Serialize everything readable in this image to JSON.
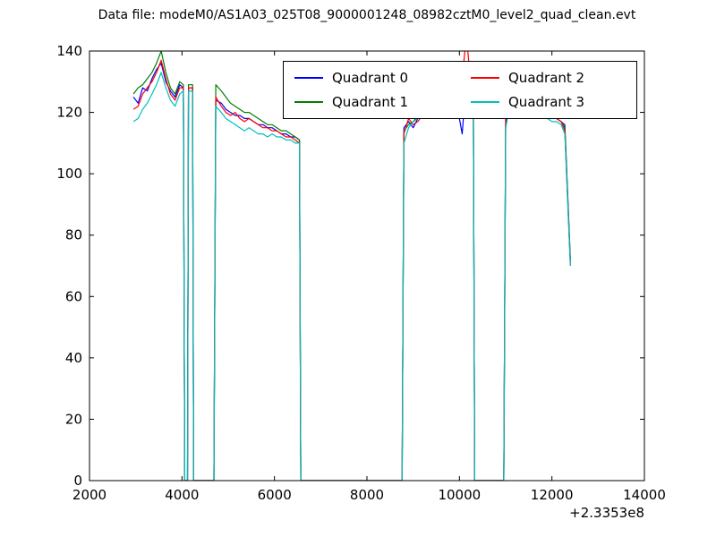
{
  "chart_data": {
    "type": "line",
    "title": "Data file: modeM0/AS1A03_025T08_9000001248_08982cztM0_level2_quad_clean.evt",
    "xlabel": "",
    "ylabel": "",
    "xlim": [
      2000,
      14000
    ],
    "ylim": [
      0,
      140
    ],
    "xticks": [
      2000,
      4000,
      6000,
      8000,
      10000,
      12000,
      14000
    ],
    "yticks": [
      0,
      20,
      40,
      60,
      80,
      100,
      120,
      140
    ],
    "x_offset_label": "+2.3353e8",
    "grid": false,
    "legend": {
      "position": "upper center",
      "columns": 2
    },
    "series": [
      {
        "name": "Quadrant 0",
        "color": "#0000ff",
        "points": [
          [
            2950,
            125
          ],
          [
            3050,
            123
          ],
          [
            3150,
            128
          ],
          [
            3250,
            127
          ],
          [
            3350,
            131
          ],
          [
            3450,
            134
          ],
          [
            3550,
            136
          ],
          [
            3650,
            130
          ],
          [
            3750,
            127
          ],
          [
            3850,
            125
          ],
          [
            3950,
            129
          ],
          [
            4030,
            128
          ],
          [
            4060,
            0
          ],
          [
            4120,
            0
          ],
          [
            4140,
            128
          ],
          [
            4230,
            128
          ],
          [
            4250,
            0
          ],
          [
            4690,
            0
          ],
          [
            4730,
            124
          ],
          [
            4850,
            123
          ],
          [
            4950,
            121
          ],
          [
            5050,
            120
          ],
          [
            5150,
            119
          ],
          [
            5250,
            119
          ],
          [
            5350,
            118
          ],
          [
            5450,
            118
          ],
          [
            5550,
            117
          ],
          [
            5650,
            116
          ],
          [
            5750,
            116
          ],
          [
            5850,
            115
          ],
          [
            5950,
            115
          ],
          [
            6050,
            114
          ],
          [
            6150,
            113
          ],
          [
            6250,
            113
          ],
          [
            6350,
            112
          ],
          [
            6450,
            112
          ],
          [
            6540,
            111
          ],
          [
            6570,
            0
          ],
          [
            8760,
            0
          ],
          [
            8800,
            115
          ],
          [
            8900,
            117
          ],
          [
            9000,
            115
          ],
          [
            9100,
            118
          ],
          [
            9200,
            119
          ],
          [
            9300,
            120
          ],
          [
            9400,
            121
          ],
          [
            9500,
            123
          ],
          [
            9600,
            125
          ],
          [
            9700,
            127
          ],
          [
            9800,
            128
          ],
          [
            9900,
            124
          ],
          [
            10000,
            118
          ],
          [
            10060,
            113
          ],
          [
            10150,
            131
          ],
          [
            10230,
            129
          ],
          [
            10300,
            128
          ],
          [
            10330,
            0
          ],
          [
            10960,
            0
          ],
          [
            11000,
            116
          ],
          [
            11080,
            127
          ],
          [
            11200,
            128
          ],
          [
            11300,
            126
          ],
          [
            11400,
            124
          ],
          [
            11500,
            123
          ],
          [
            11600,
            122
          ],
          [
            11700,
            121
          ],
          [
            11800,
            120
          ],
          [
            11900,
            119
          ],
          [
            12000,
            118
          ],
          [
            12100,
            118
          ],
          [
            12200,
            117
          ],
          [
            12280,
            116
          ],
          [
            12400,
            72
          ]
        ]
      },
      {
        "name": "Quadrant 1",
        "color": "#008000",
        "points": [
          [
            2950,
            126
          ],
          [
            3050,
            128
          ],
          [
            3150,
            129
          ],
          [
            3250,
            131
          ],
          [
            3350,
            133
          ],
          [
            3450,
            136
          ],
          [
            3550,
            140
          ],
          [
            3650,
            133
          ],
          [
            3750,
            128
          ],
          [
            3850,
            126
          ],
          [
            3950,
            130
          ],
          [
            4030,
            129
          ],
          [
            4060,
            0
          ],
          [
            4120,
            0
          ],
          [
            4140,
            129
          ],
          [
            4230,
            129
          ],
          [
            4250,
            0
          ],
          [
            4690,
            0
          ],
          [
            4730,
            129
          ],
          [
            4850,
            127
          ],
          [
            4950,
            125
          ],
          [
            5050,
            123
          ],
          [
            5150,
            122
          ],
          [
            5250,
            121
          ],
          [
            5350,
            120
          ],
          [
            5450,
            120
          ],
          [
            5550,
            119
          ],
          [
            5650,
            118
          ],
          [
            5750,
            117
          ],
          [
            5850,
            116
          ],
          [
            5950,
            116
          ],
          [
            6050,
            115
          ],
          [
            6150,
            114
          ],
          [
            6250,
            114
          ],
          [
            6350,
            113
          ],
          [
            6450,
            112
          ],
          [
            6540,
            111
          ],
          [
            6570,
            0
          ],
          [
            8760,
            0
          ],
          [
            8800,
            114
          ],
          [
            8900,
            116
          ],
          [
            9000,
            117
          ],
          [
            9100,
            119
          ],
          [
            9200,
            120
          ],
          [
            9300,
            122
          ],
          [
            9400,
            124
          ],
          [
            9500,
            127
          ],
          [
            9600,
            130
          ],
          [
            9700,
            133
          ],
          [
            9800,
            135
          ],
          [
            9900,
            130
          ],
          [
            10000,
            127
          ],
          [
            10060,
            129
          ],
          [
            10150,
            134
          ],
          [
            10230,
            131
          ],
          [
            10300,
            129
          ],
          [
            10330,
            0
          ],
          [
            10960,
            0
          ],
          [
            11000,
            118
          ],
          [
            11080,
            131
          ],
          [
            11200,
            129
          ],
          [
            11300,
            127
          ],
          [
            11400,
            125
          ],
          [
            11500,
            123
          ],
          [
            11600,
            122
          ],
          [
            11700,
            121
          ],
          [
            11800,
            120
          ],
          [
            11900,
            119
          ],
          [
            12000,
            119
          ],
          [
            12100,
            118
          ],
          [
            12200,
            117
          ],
          [
            12280,
            115
          ],
          [
            12400,
            71
          ]
        ]
      },
      {
        "name": "Quadrant 2",
        "color": "#ff0000",
        "points": [
          [
            2950,
            121
          ],
          [
            3050,
            122
          ],
          [
            3150,
            126
          ],
          [
            3250,
            128
          ],
          [
            3350,
            130
          ],
          [
            3450,
            133
          ],
          [
            3550,
            137
          ],
          [
            3650,
            131
          ],
          [
            3750,
            126
          ],
          [
            3850,
            124
          ],
          [
            3950,
            128
          ],
          [
            4030,
            128
          ],
          [
            4060,
            0
          ],
          [
            4120,
            0
          ],
          [
            4140,
            128
          ],
          [
            4230,
            128
          ],
          [
            4250,
            0
          ],
          [
            4690,
            0
          ],
          [
            4730,
            125
          ],
          [
            4850,
            122
          ],
          [
            4950,
            120
          ],
          [
            5050,
            119
          ],
          [
            5150,
            120
          ],
          [
            5250,
            118
          ],
          [
            5350,
            117
          ],
          [
            5450,
            118
          ],
          [
            5550,
            117
          ],
          [
            5650,
            116
          ],
          [
            5750,
            115
          ],
          [
            5850,
            115
          ],
          [
            5950,
            114
          ],
          [
            6050,
            114
          ],
          [
            6150,
            113
          ],
          [
            6250,
            112
          ],
          [
            6350,
            112
          ],
          [
            6450,
            111
          ],
          [
            6540,
            110
          ],
          [
            6570,
            0
          ],
          [
            8760,
            0
          ],
          [
            8800,
            113
          ],
          [
            8900,
            118
          ],
          [
            9000,
            116
          ],
          [
            9100,
            117
          ],
          [
            9200,
            119
          ],
          [
            9300,
            121
          ],
          [
            9400,
            123
          ],
          [
            9500,
            125
          ],
          [
            9600,
            128
          ],
          [
            9700,
            130
          ],
          [
            9800,
            128
          ],
          [
            9900,
            126
          ],
          [
            10000,
            129
          ],
          [
            10060,
            131
          ],
          [
            10150,
            145
          ],
          [
            10230,
            132
          ],
          [
            10300,
            130
          ],
          [
            10330,
            0
          ],
          [
            10960,
            0
          ],
          [
            11000,
            120
          ],
          [
            11080,
            133
          ],
          [
            11200,
            131
          ],
          [
            11300,
            128
          ],
          [
            11400,
            126
          ],
          [
            11500,
            124
          ],
          [
            11600,
            123
          ],
          [
            11700,
            122
          ],
          [
            11800,
            121
          ],
          [
            11900,
            120
          ],
          [
            12000,
            119
          ],
          [
            12100,
            118
          ],
          [
            12200,
            117
          ],
          [
            12280,
            114
          ],
          [
            12400,
            70
          ]
        ]
      },
      {
        "name": "Quadrant 3",
        "color": "#00bfbf",
        "points": [
          [
            2950,
            117
          ],
          [
            3050,
            118
          ],
          [
            3150,
            121
          ],
          [
            3250,
            123
          ],
          [
            3350,
            126
          ],
          [
            3450,
            129
          ],
          [
            3550,
            133
          ],
          [
            3650,
            128
          ],
          [
            3750,
            124
          ],
          [
            3850,
            122
          ],
          [
            3950,
            126
          ],
          [
            4030,
            127
          ],
          [
            4060,
            0
          ],
          [
            4120,
            0
          ],
          [
            4140,
            127
          ],
          [
            4230,
            127
          ],
          [
            4250,
            0
          ],
          [
            4690,
            0
          ],
          [
            4730,
            122
          ],
          [
            4850,
            120
          ],
          [
            4950,
            118
          ],
          [
            5050,
            117
          ],
          [
            5150,
            116
          ],
          [
            5250,
            115
          ],
          [
            5350,
            114
          ],
          [
            5450,
            115
          ],
          [
            5550,
            114
          ],
          [
            5650,
            113
          ],
          [
            5750,
            113
          ],
          [
            5850,
            112
          ],
          [
            5950,
            113
          ],
          [
            6050,
            112
          ],
          [
            6150,
            112
          ],
          [
            6250,
            111
          ],
          [
            6350,
            111
          ],
          [
            6450,
            110
          ],
          [
            6540,
            110
          ],
          [
            6570,
            0
          ],
          [
            8760,
            0
          ],
          [
            8800,
            110
          ],
          [
            8900,
            115
          ],
          [
            9000,
            117
          ],
          [
            9100,
            118
          ],
          [
            9200,
            120
          ],
          [
            9300,
            121
          ],
          [
            9400,
            122
          ],
          [
            9500,
            124
          ],
          [
            9600,
            126
          ],
          [
            9700,
            128
          ],
          [
            9800,
            130
          ],
          [
            9900,
            127
          ],
          [
            10000,
            125
          ],
          [
            10060,
            127
          ],
          [
            10150,
            132
          ],
          [
            10230,
            128
          ],
          [
            10300,
            127
          ],
          [
            10330,
            0
          ],
          [
            10960,
            0
          ],
          [
            11000,
            115
          ],
          [
            11080,
            121
          ],
          [
            11200,
            124
          ],
          [
            11300,
            123
          ],
          [
            11400,
            122
          ],
          [
            11500,
            121
          ],
          [
            11600,
            120
          ],
          [
            11700,
            119
          ],
          [
            11800,
            119
          ],
          [
            11900,
            118
          ],
          [
            12000,
            117
          ],
          [
            12100,
            117
          ],
          [
            12200,
            116
          ],
          [
            12280,
            113
          ],
          [
            12400,
            70
          ]
        ]
      }
    ]
  }
}
